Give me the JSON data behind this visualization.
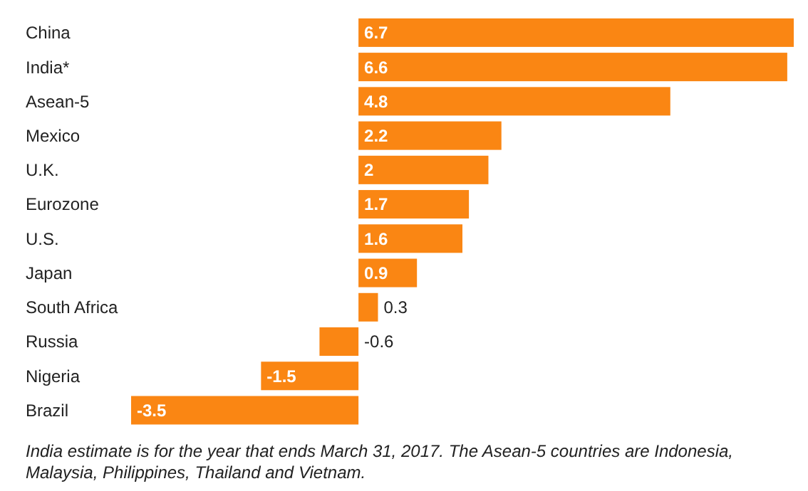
{
  "chart_data": {
    "type": "bar",
    "orientation": "horizontal",
    "categories": [
      "China",
      "India*",
      "Asean-5",
      "Mexico",
      "U.K.",
      "Eurozone",
      "U.S.",
      "Japan",
      "South Africa",
      "Russia",
      "Nigeria",
      "Brazil"
    ],
    "values": [
      6.7,
      6.6,
      4.8,
      2.2,
      2,
      1.7,
      1.6,
      0.9,
      0.3,
      -0.6,
      -1.5,
      -3.5
    ],
    "color": "#fa8613",
    "data_labels": true,
    "annotations": [
      "India estimate is for the year that ends March 31, 2017. The Asean-5 countries are Indonesia, Malaysia, Philippines, Thailand and Vietnam."
    ]
  }
}
